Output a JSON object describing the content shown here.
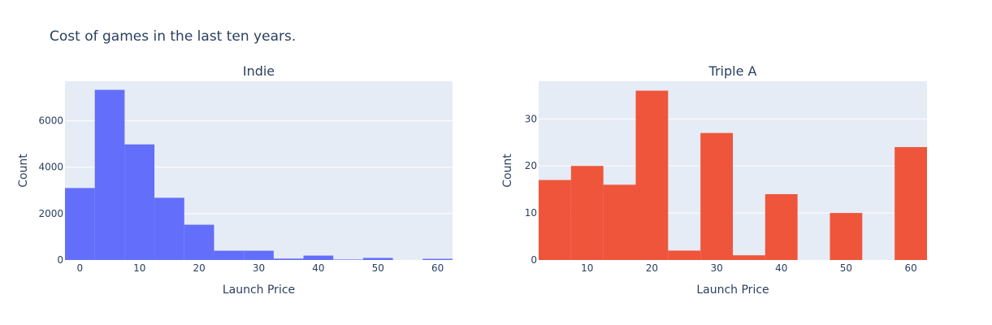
{
  "title": "Cost of games in the last ten years.",
  "chart_data": [
    {
      "type": "bar",
      "subtitle": "Indie",
      "color": "#636efa",
      "xlabel": "Launch Price",
      "ylabel": "Count",
      "xlim": [
        -2.5,
        62.5
      ],
      "ylim": [
        0,
        7700
      ],
      "bin_width": 5,
      "bins": [
        {
          "start": -2.5,
          "value": 3100
        },
        {
          "start": 2.5,
          "value": 7330
        },
        {
          "start": 7.5,
          "value": 4980
        },
        {
          "start": 12.5,
          "value": 2680
        },
        {
          "start": 17.5,
          "value": 1520
        },
        {
          "start": 22.5,
          "value": 400
        },
        {
          "start": 27.5,
          "value": 400
        },
        {
          "start": 32.5,
          "value": 60
        },
        {
          "start": 37.5,
          "value": 190
        },
        {
          "start": 42.5,
          "value": 20
        },
        {
          "start": 47.5,
          "value": 90
        },
        {
          "start": 52.5,
          "value": 0
        },
        {
          "start": 57.5,
          "value": 50
        }
      ],
      "xticks": [
        0,
        10,
        20,
        30,
        40,
        50,
        60
      ],
      "yticks": [
        0,
        2000,
        4000,
        6000
      ]
    },
    {
      "type": "bar",
      "subtitle": "Triple A",
      "color": "#ef553b",
      "xlabel": "Launch Price",
      "ylabel": "Count",
      "xlim": [
        2.5,
        62.5
      ],
      "ylim": [
        0,
        38
      ],
      "bin_width": 5,
      "bins": [
        {
          "start": 2.5,
          "value": 17
        },
        {
          "start": 7.5,
          "value": 20
        },
        {
          "start": 12.5,
          "value": 16
        },
        {
          "start": 17.5,
          "value": 36
        },
        {
          "start": 22.5,
          "value": 2
        },
        {
          "start": 27.5,
          "value": 27
        },
        {
          "start": 32.5,
          "value": 1
        },
        {
          "start": 37.5,
          "value": 14
        },
        {
          "start": 42.5,
          "value": 0
        },
        {
          "start": 47.5,
          "value": 10
        },
        {
          "start": 52.5,
          "value": 0
        },
        {
          "start": 57.5,
          "value": 24
        }
      ],
      "xticks": [
        10,
        20,
        30,
        40,
        50,
        60
      ],
      "yticks": [
        0,
        10,
        20,
        30
      ]
    }
  ]
}
